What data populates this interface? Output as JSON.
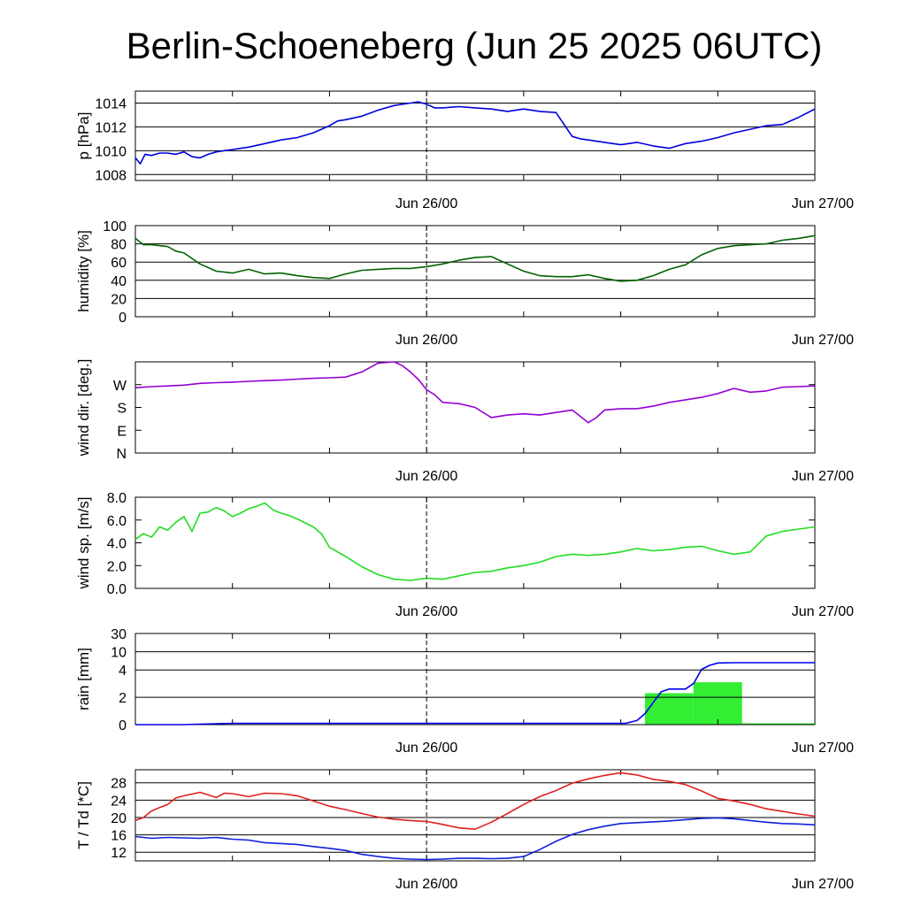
{
  "title": "Berlin-Schoeneberg (Jun 25 2025 06UTC)",
  "colors": {
    "pressure": "#0000dd",
    "humidity": "#006400",
    "wind_dir": "#9400d3",
    "wind_speed": "#22dd22",
    "rain_accum": "#0000ee",
    "rain_bars": "#33ee33",
    "temperature": "#e02020",
    "dewpoint": "#1020dd"
  },
  "chart_data": [
    {
      "type": "line",
      "ylabel": "p [hPa]",
      "x_unit": "hours since Jun 25 2025 06UTC",
      "xlim": [
        0,
        42
      ],
      "ylim": [
        1007.5,
        1015
      ],
      "yticks": [
        1008,
        1010,
        1012,
        1014
      ],
      "ytick_labels": [
        "1008",
        "1010",
        "1012",
        "1014"
      ],
      "xticks": [
        18,
        42
      ],
      "xtick_labels": [
        "Jun 26/00",
        "Jun 27/00"
      ],
      "grid": true,
      "series": [
        {
          "key": "pressure",
          "x": [
            0,
            0.3,
            0.6,
            1,
            1.5,
            2,
            2.5,
            3,
            3.5,
            4,
            4.5,
            5,
            5.5,
            6,
            7,
            8,
            9,
            10,
            11,
            12,
            12.5,
            13,
            14,
            15,
            16,
            17,
            17.5,
            18,
            18.5,
            19,
            20,
            21,
            22,
            23,
            24,
            25,
            26,
            27,
            27.5,
            28,
            29,
            30,
            31,
            32,
            33,
            34,
            35,
            36,
            37,
            38,
            39,
            40,
            41,
            42
          ],
          "y": [
            1009.4,
            1008.9,
            1009.7,
            1009.6,
            1009.8,
            1009.8,
            1009.7,
            1009.9,
            1009.5,
            1009.4,
            1009.7,
            1009.9,
            1010.0,
            1010.1,
            1010.3,
            1010.6,
            1010.9,
            1011.1,
            1011.5,
            1012.1,
            1012.5,
            1012.6,
            1012.9,
            1013.4,
            1013.8,
            1014.0,
            1014.1,
            1013.9,
            1013.6,
            1013.6,
            1013.7,
            1013.6,
            1013.5,
            1013.3,
            1013.5,
            1013.3,
            1013.2,
            1011.2,
            1011.0,
            1010.9,
            1010.7,
            1010.5,
            1010.7,
            1010.4,
            1010.2,
            1010.6,
            1010.8,
            1011.1,
            1011.5,
            1011.8,
            1012.1,
            1012.2,
            1012.8,
            1013.5
          ]
        }
      ]
    },
    {
      "type": "line",
      "ylabel": "humidity [%]",
      "x_unit": "hours since Jun 25 2025 06UTC",
      "xlim": [
        0,
        42
      ],
      "ylim": [
        0,
        100
      ],
      "yticks": [
        0,
        20,
        40,
        60,
        80,
        100
      ],
      "ytick_labels": [
        "0",
        "20",
        "40",
        "60",
        "80",
        "100"
      ],
      "xticks": [
        18,
        42
      ],
      "xtick_labels": [
        "Jun 26/00",
        "Jun 27/00"
      ],
      "grid": true,
      "series": [
        {
          "key": "humidity",
          "x": [
            0,
            0.5,
            1,
            2,
            2.5,
            3,
            3.5,
            4,
            5,
            6,
            7,
            8,
            9,
            10,
            11,
            12,
            13,
            14,
            15,
            16,
            17,
            18,
            19,
            20,
            21,
            22,
            23,
            24,
            25,
            26,
            27,
            28,
            29,
            30,
            31,
            32,
            33,
            34,
            35,
            36,
            37,
            38,
            39,
            40,
            41,
            42
          ],
          "y": [
            86,
            79,
            79,
            77,
            72,
            70,
            64,
            58,
            50,
            48,
            52,
            47,
            48,
            45,
            43,
            42,
            47,
            51,
            52,
            53,
            53,
            55,
            58,
            62,
            65,
            66,
            58,
            50,
            45,
            44,
            44,
            46,
            42,
            39,
            40,
            45,
            52,
            57,
            68,
            75,
            78,
            79,
            80,
            84,
            86,
            89
          ]
        }
      ]
    },
    {
      "type": "line",
      "ylabel": "wind dir. [deg.]",
      "x_unit": "hours since Jun 25 2025 06UTC",
      "xlim": [
        0,
        42
      ],
      "ylim": [
        0,
        360
      ],
      "yticks": [
        0,
        90,
        180,
        270
      ],
      "ytick_labels": [
        "N",
        "E",
        "S",
        "W"
      ],
      "xticks": [
        18,
        42
      ],
      "xtick_labels": [
        "Jun 26/00",
        "Jun 27/00"
      ],
      "grid": false,
      "series": [
        {
          "key": "wind_dir",
          "x": [
            0,
            1,
            2,
            3,
            4,
            5,
            6,
            7,
            8,
            9,
            10,
            11,
            12,
            13,
            14,
            15,
            16,
            16.5,
            17,
            17.5,
            18,
            18.5,
            19,
            20,
            21,
            22,
            23,
            24,
            25,
            26,
            27,
            28,
            28.5,
            29,
            30,
            31,
            32,
            33,
            34,
            35,
            36,
            37,
            38,
            39,
            40,
            41,
            42
          ],
          "y": [
            258,
            262,
            265,
            268,
            275,
            278,
            280,
            283,
            286,
            288,
            292,
            295,
            297,
            300,
            320,
            355,
            360,
            345,
            320,
            290,
            250,
            230,
            200,
            195,
            180,
            140,
            150,
            155,
            150,
            160,
            170,
            120,
            140,
            170,
            175,
            175,
            185,
            200,
            210,
            220,
            235,
            255,
            240,
            245,
            260,
            262,
            265
          ]
        }
      ]
    },
    {
      "type": "line",
      "ylabel": "wind sp. [m/s]",
      "x_unit": "hours since Jun 25 2025 06UTC",
      "xlim": [
        0,
        42
      ],
      "ylim": [
        0,
        8
      ],
      "yticks": [
        0,
        2,
        4,
        6,
        8
      ],
      "ytick_labels": [
        "0.0",
        "2.0",
        "4.0",
        "6.0",
        "8.0"
      ],
      "xticks": [
        18,
        42
      ],
      "xtick_labels": [
        "Jun 26/00",
        "Jun 27/00"
      ],
      "grid": false,
      "series": [
        {
          "key": "wind_speed",
          "x": [
            0,
            0.5,
            1,
            1.5,
            2,
            2.5,
            3,
            3.5,
            4,
            4.5,
            5,
            5.5,
            6,
            6.5,
            7,
            7.5,
            8,
            8.5,
            9,
            9.5,
            10,
            11,
            11.5,
            12,
            13,
            14,
            15,
            16,
            17,
            18,
            19,
            20,
            21,
            22,
            23,
            24,
            25,
            26,
            27,
            28,
            29,
            30,
            31,
            32,
            33,
            34,
            35,
            36,
            37,
            38,
            39,
            40,
            41,
            42
          ],
          "y": [
            4.3,
            4.8,
            4.5,
            5.4,
            5.1,
            5.8,
            6.3,
            5.0,
            6.6,
            6.7,
            7.1,
            6.8,
            6.3,
            6.6,
            7.0,
            7.2,
            7.5,
            6.9,
            6.6,
            6.4,
            6.1,
            5.4,
            4.8,
            3.6,
            2.8,
            1.9,
            1.2,
            0.8,
            0.7,
            0.9,
            0.8,
            1.1,
            1.4,
            1.5,
            1.8,
            2.0,
            2.3,
            2.8,
            3.0,
            2.9,
            3.0,
            3.2,
            3.5,
            3.3,
            3.4,
            3.6,
            3.7,
            3.3,
            3.0,
            3.2,
            4.6,
            5.0,
            5.2,
            5.4
          ]
        }
      ]
    },
    {
      "type": "line",
      "ylabel": "rain [mm]",
      "x_unit": "hours since Jun 25 2025 06UTC",
      "xlim": [
        0,
        42
      ],
      "yticks": [
        0,
        2,
        4,
        10,
        30
      ],
      "ytick_labels": [
        "0",
        "2",
        "4",
        "10",
        "30"
      ],
      "xticks": [
        18,
        42
      ],
      "xtick_labels": [
        "Jun 26/00",
        "Jun 27/00"
      ],
      "grid": true,
      "bars": [
        {
          "x0": 31.5,
          "x1": 34.5,
          "value": 2.3
        },
        {
          "x0": 34.5,
          "x1": 37.5,
          "value": 3.1
        },
        {
          "x0": 37.5,
          "x1": 42,
          "value": 0.1
        }
      ],
      "series": [
        {
          "key": "rain_accum",
          "x": [
            0,
            3,
            6,
            9,
            12,
            18,
            24,
            30,
            30.3,
            31,
            31.5,
            32,
            32.5,
            33,
            34,
            34.5,
            35,
            35.5,
            36,
            37,
            42
          ],
          "y": [
            0,
            0,
            0.1,
            0.1,
            0.1,
            0.1,
            0.1,
            0.1,
            0.1,
            0.3,
            0.8,
            1.6,
            2.4,
            2.6,
            2.6,
            3.0,
            4.2,
            5.5,
            6.3,
            6.4,
            6.4
          ]
        }
      ]
    },
    {
      "type": "line",
      "ylabel": "T / Td [*C]",
      "x_unit": "hours since Jun 25 2025 06UTC",
      "xlim": [
        0,
        42
      ],
      "ylim": [
        10,
        31
      ],
      "yticks": [
        12,
        16,
        20,
        24,
        28
      ],
      "ytick_labels": [
        "12",
        "16",
        "20",
        "24",
        "28"
      ],
      "xticks": [
        18,
        42
      ],
      "xtick_labels": [
        "Jun 26/00",
        "Jun 27/00"
      ],
      "grid": true,
      "series": [
        {
          "key": "temperature",
          "x": [
            0,
            0.5,
            1,
            1.5,
            2,
            2.5,
            3,
            4,
            5,
            5.5,
            6,
            7,
            8,
            9,
            10,
            11,
            12,
            13,
            14,
            15,
            16,
            17,
            18,
            19,
            20,
            21,
            22,
            23,
            24,
            25,
            26,
            27,
            28,
            29,
            30,
            31,
            32,
            33,
            34,
            35,
            36,
            37,
            38,
            39,
            40,
            41,
            42
          ],
          "y": [
            19.3,
            20.0,
            21.5,
            22.3,
            23.0,
            24.5,
            25.0,
            25.8,
            24.6,
            25.6,
            25.5,
            24.8,
            25.6,
            25.5,
            25.0,
            23.8,
            22.6,
            21.8,
            20.9,
            20.1,
            19.6,
            19.3,
            19.1,
            18.4,
            17.6,
            17.3,
            18.9,
            20.9,
            23.0,
            24.8,
            26.2,
            27.9,
            28.9,
            29.7,
            30.3,
            29.8,
            28.8,
            28.3,
            27.6,
            26.1,
            24.4,
            23.8,
            23.0,
            22.0,
            21.4,
            20.8,
            20.3
          ]
        },
        {
          "key": "dewpoint",
          "x": [
            0,
            1,
            2,
            3,
            4,
            5,
            6,
            7,
            8,
            9,
            10,
            11,
            12,
            13,
            14,
            15,
            16,
            17,
            18,
            19,
            20,
            21,
            22,
            23,
            24,
            25,
            26,
            27,
            28,
            29,
            30,
            31,
            32,
            33,
            34,
            35,
            36,
            37,
            38,
            39,
            40,
            41,
            42
          ],
          "y": [
            15.6,
            15.2,
            15.4,
            15.3,
            15.2,
            15.4,
            15.0,
            14.8,
            14.2,
            14.0,
            13.8,
            13.3,
            12.9,
            12.4,
            11.5,
            11.0,
            10.6,
            10.4,
            10.3,
            10.4,
            10.6,
            10.6,
            10.5,
            10.6,
            11.0,
            12.6,
            14.5,
            16.1,
            17.2,
            18.0,
            18.6,
            18.8,
            19.0,
            19.2,
            19.5,
            19.8,
            19.9,
            19.7,
            19.3,
            18.9,
            18.6,
            18.5,
            18.3
          ]
        }
      ]
    }
  ]
}
